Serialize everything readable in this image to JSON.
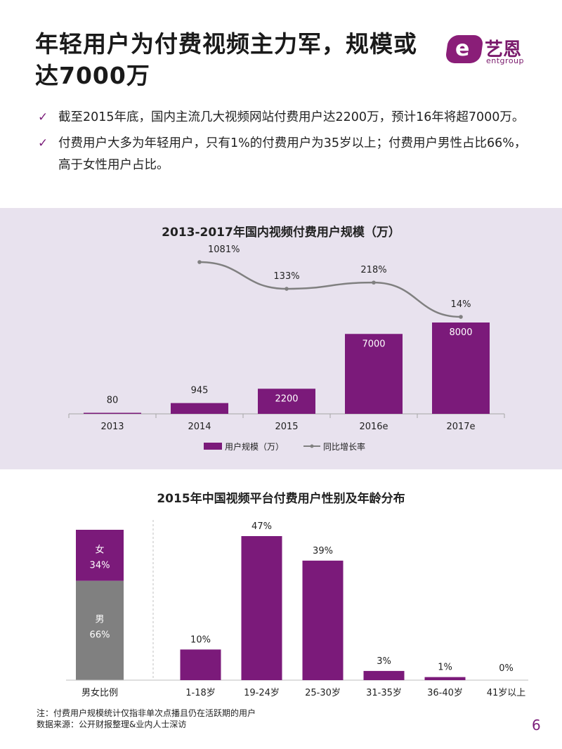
{
  "page": {
    "title": "年轻用户为付费视频主力军，规模或达7000万",
    "logo_cn": "艺恩",
    "logo_en": "entgroup",
    "logo_letter": "e",
    "page_number": "6",
    "accent_color": "#7b1a7a"
  },
  "bullets": [
    "截至2015年底，国内主流几大视频网站付费用户达2200万，预计16年将超7000万。",
    "付费用户大多为年轻用户，只有1%的付费用户为35岁以上；付费用户男性占比66%，高于女性用户占比。"
  ],
  "chart_data": [
    {
      "type": "bar",
      "title": "2013-2017年国内视频付费用户规模（万）",
      "categories": [
        "2013",
        "2014",
        "2015",
        "2016e",
        "2017e"
      ],
      "series": [
        {
          "name": "用户规模（万）",
          "type": "bar",
          "values": [
            80,
            945,
            2200,
            7000,
            8000
          ],
          "labels": [
            "80",
            "945",
            "2200",
            "7000",
            "8000"
          ],
          "color": "#7b1a7a"
        },
        {
          "name": "同比增长率",
          "type": "line",
          "values": [
            null,
            1081,
            133,
            218,
            14
          ],
          "labels": [
            "",
            "1081%",
            "133%",
            "218%",
            "14%"
          ],
          "color": "#808080"
        }
      ]
    },
    {
      "type": "bar",
      "title": "2015年中国视频平台付费用户性别及年龄分布",
      "gender": {
        "category": "男女比例",
        "segments": [
          {
            "name": "女",
            "value": 34,
            "label": "34%",
            "color": "#7b1a7a"
          },
          {
            "name": "男",
            "value": 66,
            "label": "66%",
            "color": "#808080"
          }
        ]
      },
      "categories": [
        "1-18岁",
        "19-24岁",
        "25-30岁",
        "31-35岁",
        "36-40岁",
        "41岁以上"
      ],
      "values": [
        10,
        47,
        39,
        3,
        1,
        0
      ],
      "labels": [
        "10%",
        "47%",
        "39%",
        "3%",
        "1%",
        "0%"
      ],
      "color": "#7b1a7a"
    }
  ],
  "notes": {
    "line1": "注：付费用户规模统计仅指非单次点播且仍在活跃期的用户",
    "line2": "数据来源：公开财报整理&业内人士深访"
  }
}
